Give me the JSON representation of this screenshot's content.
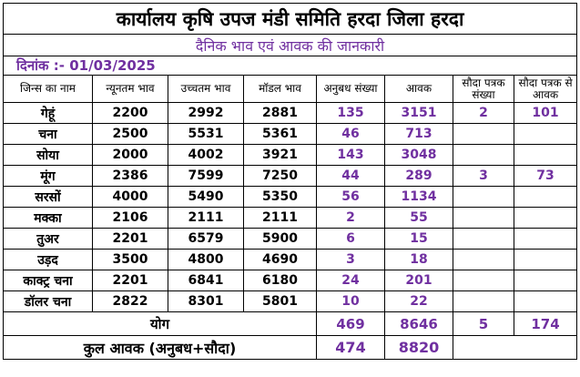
{
  "title": "कार्यालय कृषि उपज मंडी समिति हरदा जिला हरदा",
  "subtitle": "दैनिक भाव एवं आवक की जानकारी",
  "date_line": "दिनांक :- 01/03/2025",
  "colors": {
    "purple": "#7030a0",
    "border": "#000000",
    "text": "#000000"
  },
  "headers": [
    "जिन्स का नाम",
    "न्यूनतम भाव",
    "उच्चतम भाव",
    "मॉडल भाव",
    "अनुबध संख्या",
    "आवक",
    "सौदा पत्रक संख्या",
    "सौदा पत्रक से आवक"
  ],
  "rows": [
    {
      "crop": "गेहूं",
      "min": "2200",
      "max": "2992",
      "model": "2881",
      "anubadh": "135",
      "awak": "3151",
      "sauda_count": "2",
      "sauda_awak": "101"
    },
    {
      "crop": "चना",
      "min": "2500",
      "max": "5531",
      "model": "5361",
      "anubadh": "46",
      "awak": "713",
      "sauda_count": "",
      "sauda_awak": ""
    },
    {
      "crop": "सोया",
      "min": "2000",
      "max": "4002",
      "model": "3921",
      "anubadh": "143",
      "awak": "3048",
      "sauda_count": "",
      "sauda_awak": ""
    },
    {
      "crop": "मूंग",
      "min": "2386",
      "max": "7599",
      "model": "7250",
      "anubadh": "44",
      "awak": "289",
      "sauda_count": "3",
      "sauda_awak": "73"
    },
    {
      "crop": "सरसों",
      "min": "4000",
      "max": "5490",
      "model": "5350",
      "anubadh": "56",
      "awak": "1134",
      "sauda_count": "",
      "sauda_awak": ""
    },
    {
      "crop": "मक्का",
      "min": "2106",
      "max": "2111",
      "model": "2111",
      "anubadh": "2",
      "awak": "55",
      "sauda_count": "",
      "sauda_awak": ""
    },
    {
      "crop": "तुअर",
      "min": "2201",
      "max": "6579",
      "model": "5900",
      "anubadh": "6",
      "awak": "15",
      "sauda_count": "",
      "sauda_awak": ""
    },
    {
      "crop": "उड़द",
      "min": "3500",
      "max": "4800",
      "model": "4690",
      "anubadh": "3",
      "awak": "18",
      "sauda_count": "",
      "sauda_awak": ""
    },
    {
      "crop": "काक्ट्र चना",
      "min": "2201",
      "max": "6841",
      "model": "6180",
      "anubadh": "24",
      "awak": "201",
      "sauda_count": "",
      "sauda_awak": ""
    },
    {
      "crop": "डॉलर चना",
      "min": "2822",
      "max": "8301",
      "model": "5801",
      "anubadh": "10",
      "awak": "22",
      "sauda_count": "",
      "sauda_awak": ""
    }
  ],
  "total": {
    "label": "योग",
    "anubadh": "469",
    "awak": "8646",
    "sauda_count": "5",
    "sauda_awak": "174"
  },
  "grand_total": {
    "label": "कुल आवक (अनुबध+सौदा)",
    "anubadh": "474",
    "awak": "8820"
  }
}
